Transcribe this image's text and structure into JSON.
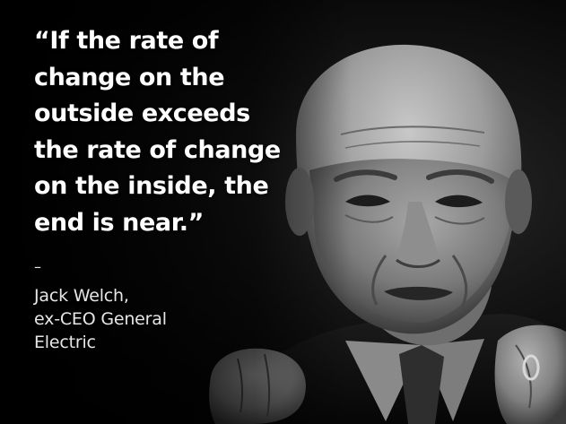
{
  "slide": {
    "quote": "“If the rate of\nchange on the\noutside exceeds\nthe rate of change\non the inside, the\nend is near.”",
    "dash": "–",
    "attribution": "Jack Welch,\nex-CEO General\nElectric"
  },
  "photo": {
    "subject": "portrait-photo",
    "tones": {
      "background": "#000000",
      "skin_light": "#b9b9b9",
      "skin_mid": "#7a7a7a",
      "skin_dark": "#2c2c2c"
    }
  }
}
